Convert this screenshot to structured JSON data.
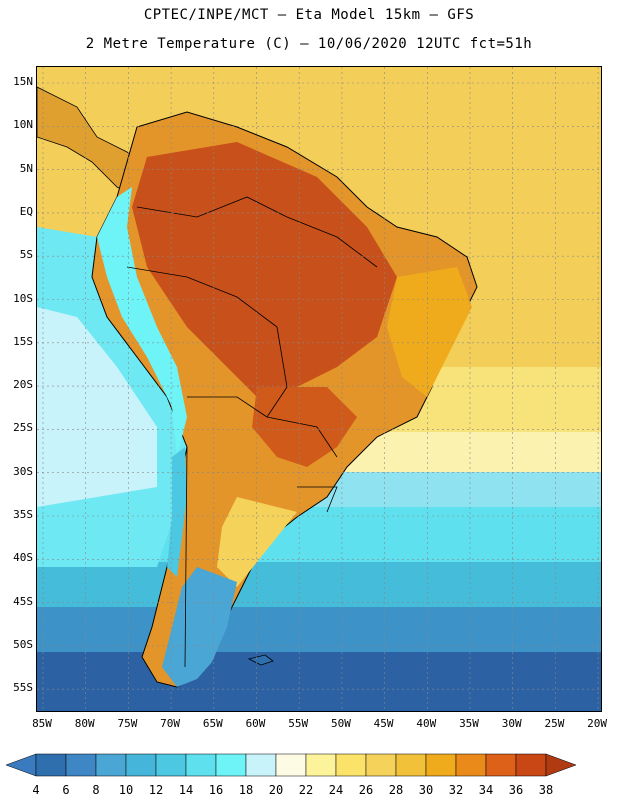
{
  "title": {
    "line1": "CPTEC/INPE/MCT –  Eta Model 15km – GFS",
    "line2": "2 Metre Temperature (C) – 10/06/2020 12UTC fct=51h"
  },
  "map": {
    "lat_labels": [
      "15N",
      "10N",
      "5N",
      "EQ",
      "5S",
      "10S",
      "15S",
      "20S",
      "25S",
      "30S",
      "35S",
      "40S",
      "45S",
      "50S",
      "55S"
    ],
    "lon_labels": [
      "85W",
      "80W",
      "75W",
      "70W",
      "65W",
      "60W",
      "55W",
      "50W",
      "45W",
      "40W",
      "35W",
      "30W",
      "25W",
      "20W"
    ]
  },
  "colorbar": {
    "labels": [
      "4",
      "6",
      "8",
      "10",
      "12",
      "14",
      "16",
      "18",
      "20",
      "22",
      "24",
      "26",
      "28",
      "30",
      "32",
      "34",
      "36",
      "38"
    ],
    "colors": [
      "#3a7bbf",
      "#2f6fae",
      "#3e86c4",
      "#4aa6d4",
      "#45b5d9",
      "#4cc8e2",
      "#5ee0ee",
      "#6ef3f7",
      "#c9f3fb",
      "#fefbe4",
      "#fdf39a",
      "#fbe36a",
      "#f5d35a",
      "#f1c13a",
      "#efab1b",
      "#e98a1a",
      "#de611a",
      "#c84715",
      "#b03a12"
    ]
  }
}
